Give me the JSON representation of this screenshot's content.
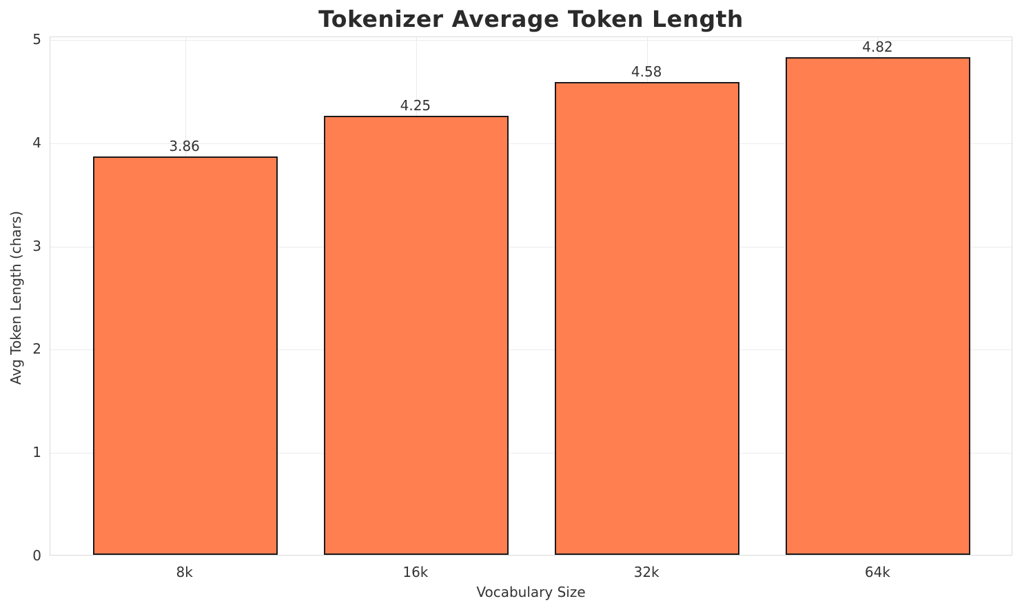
{
  "chart_data": {
    "type": "bar",
    "title": "Tokenizer Average Token Length",
    "xlabel": "Vocabulary Size",
    "ylabel": "Avg Token Length (chars)",
    "categories": [
      "8k",
      "16k",
      "32k",
      "64k"
    ],
    "values": [
      3.86,
      4.25,
      4.58,
      4.82
    ],
    "value_labels": [
      "3.86",
      "4.25",
      "4.58",
      "4.82"
    ],
    "ylim": [
      0,
      5
    ],
    "yticks": [
      0,
      1,
      2,
      3,
      4,
      5
    ],
    "grid": true,
    "legend_position": "none",
    "colors": {
      "bar_fill": "#FF7F50",
      "bar_edge": "#1a1a1a",
      "grid_line": "#ebebeb",
      "spine": "#d9d9d9",
      "title_text": "#2b2b2b",
      "tick_text": "#333333",
      "background": "#ffffff"
    }
  }
}
